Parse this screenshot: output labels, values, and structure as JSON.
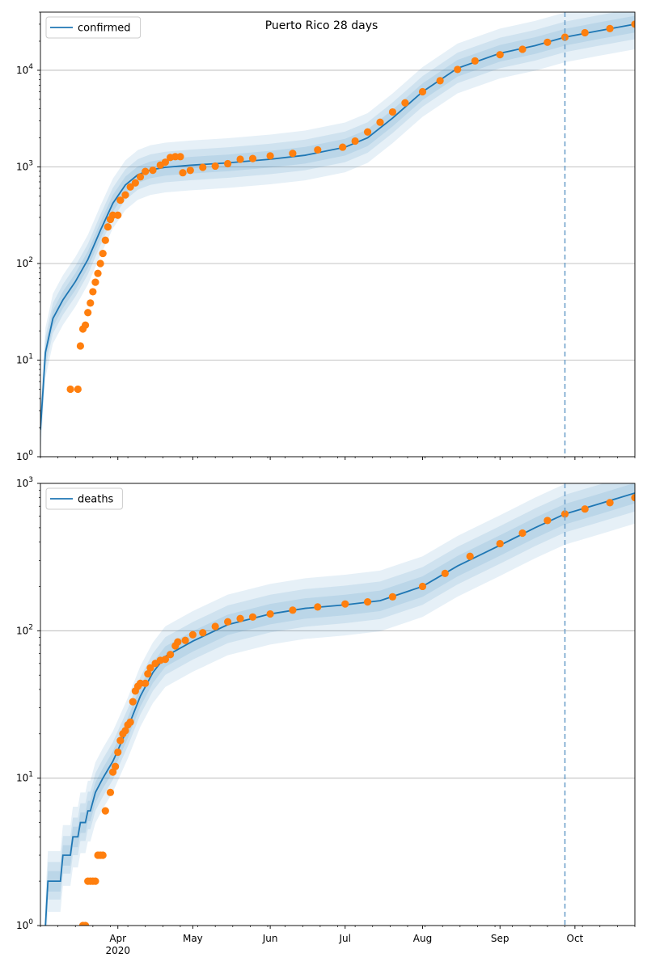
{
  "chart_data": [
    {
      "type": "line",
      "title": "Puerto Rico 28 days",
      "xlabel": "",
      "ylabel": "",
      "yscale": "log",
      "ylim": [
        1,
        40000
      ],
      "xlim": [
        "2020-03-01",
        "2020-10-25"
      ],
      "grid": "y-major",
      "legend_position": "upper-left",
      "x_tick_labels": [
        "Apr\n2020",
        "May",
        "Jun",
        "Jul",
        "Aug",
        "Sep",
        "Oct"
      ],
      "y_tick_labels": [
        "10^0",
        "10^1",
        "10^2",
        "10^3",
        "10^4"
      ],
      "forecast_start": "2020-09-27",
      "series": [
        {
          "name": "confirmed",
          "kind": "model",
          "color": "#1f77b4",
          "points": [
            [
              "2020-03-01",
              1.9
            ],
            [
              "2020-03-03",
              12
            ],
            [
              "2020-03-06",
              27
            ],
            [
              "2020-03-10",
              42
            ],
            [
              "2020-03-15",
              65
            ],
            [
              "2020-03-20",
              110
            ],
            [
              "2020-03-25",
              220
            ],
            [
              "2020-03-30",
              420
            ],
            [
              "2020-04-04",
              650
            ],
            [
              "2020-04-09",
              830
            ],
            [
              "2020-04-14",
              930
            ],
            [
              "2020-04-20",
              990
            ],
            [
              "2020-04-30",
              1040
            ],
            [
              "2020-05-15",
              1100
            ],
            [
              "2020-06-01",
              1200
            ],
            [
              "2020-06-15",
              1320
            ],
            [
              "2020-07-01",
              1600
            ],
            [
              "2020-07-10",
              2000
            ],
            [
              "2020-07-20",
              3200
            ],
            [
              "2020-08-01",
              6000
            ],
            [
              "2020-08-15",
              10500
            ],
            [
              "2020-09-01",
              15000
            ],
            [
              "2020-09-15",
              18000
            ],
            [
              "2020-09-27",
              22000
            ],
            [
              "2020-10-10",
              25500
            ],
            [
              "2020-10-25",
              30000
            ]
          ]
        },
        {
          "name": "",
          "kind": "observed",
          "color": "#ff7f0e",
          "points": [
            [
              "2020-03-13",
              5
            ],
            [
              "2020-03-16",
              5
            ],
            [
              "2020-03-17",
              14
            ],
            [
              "2020-03-18",
              21
            ],
            [
              "2020-03-19",
              23
            ],
            [
              "2020-03-20",
              31
            ],
            [
              "2020-03-21",
              39
            ],
            [
              "2020-03-22",
              51
            ],
            [
              "2020-03-23",
              64
            ],
            [
              "2020-03-24",
              79
            ],
            [
              "2020-03-25",
              100
            ],
            [
              "2020-03-26",
              127
            ],
            [
              "2020-03-27",
              174
            ],
            [
              "2020-03-28",
              239
            ],
            [
              "2020-03-29",
              286
            ],
            [
              "2020-03-30",
              316
            ],
            [
              "2020-04-01",
              316
            ],
            [
              "2020-04-02",
              452
            ],
            [
              "2020-04-04",
              513
            ],
            [
              "2020-04-06",
              620
            ],
            [
              "2020-04-08",
              683
            ],
            [
              "2020-04-10",
              788
            ],
            [
              "2020-04-12",
              897
            ],
            [
              "2020-04-15",
              923
            ],
            [
              "2020-04-18",
              1043
            ],
            [
              "2020-04-20",
              1118
            ],
            [
              "2020-04-22",
              1252
            ],
            [
              "2020-04-24",
              1276
            ],
            [
              "2020-04-26",
              1276
            ],
            [
              "2020-04-27",
              870
            ],
            [
              "2020-04-30",
              920
            ],
            [
              "2020-05-05",
              990
            ],
            [
              "2020-05-10",
              1020
            ],
            [
              "2020-05-15",
              1080
            ],
            [
              "2020-05-20",
              1200
            ],
            [
              "2020-05-25",
              1220
            ],
            [
              "2020-06-01",
              1300
            ],
            [
              "2020-06-10",
              1380
            ],
            [
              "2020-06-20",
              1500
            ],
            [
              "2020-06-30",
              1600
            ],
            [
              "2020-07-05",
              1850
            ],
            [
              "2020-07-10",
              2300
            ],
            [
              "2020-07-15",
              2900
            ],
            [
              "2020-07-20",
              3700
            ],
            [
              "2020-07-25",
              4600
            ],
            [
              "2020-08-01",
              6000
            ],
            [
              "2020-08-08",
              7800
            ],
            [
              "2020-08-15",
              10200
            ],
            [
              "2020-08-22",
              12500
            ],
            [
              "2020-09-01",
              14500
            ],
            [
              "2020-09-10",
              16500
            ],
            [
              "2020-09-20",
              19500
            ],
            [
              "2020-09-27",
              22000
            ],
            [
              "2020-10-05",
              24500
            ],
            [
              "2020-10-15",
              27000
            ],
            [
              "2020-10-25",
              30000
            ]
          ]
        }
      ],
      "bands": [
        [
          0.55,
          1.8
        ],
        [
          0.7,
          1.45
        ],
        [
          0.82,
          1.22
        ]
      ]
    },
    {
      "type": "line",
      "title": "",
      "xlabel": "",
      "ylabel": "",
      "yscale": "log",
      "ylim": [
        1,
        1000
      ],
      "xlim": [
        "2020-03-01",
        "2020-10-25"
      ],
      "grid": "y-major",
      "legend_position": "upper-left",
      "x_tick_labels": [
        "Apr\n2020",
        "May",
        "Jun",
        "Jul",
        "Aug",
        "Sep",
        "Oct"
      ],
      "y_tick_labels": [
        "10^0",
        "10^1",
        "10^2",
        "10^3"
      ],
      "forecast_start": "2020-09-27",
      "series": [
        {
          "name": "deaths",
          "kind": "model",
          "color": "#1f77b4",
          "points": [
            [
              "2020-03-03",
              1
            ],
            [
              "2020-03-04",
              2
            ],
            [
              "2020-03-09",
              2
            ],
            [
              "2020-03-10",
              3
            ],
            [
              "2020-03-13",
              3
            ],
            [
              "2020-03-14",
              4
            ],
            [
              "2020-03-16",
              4
            ],
            [
              "2020-03-17",
              5
            ],
            [
              "2020-03-19",
              5
            ],
            [
              "2020-03-20",
              6
            ],
            [
              "2020-03-21",
              6
            ],
            [
              "2020-03-23",
              8
            ],
            [
              "2020-03-26",
              10
            ],
            [
              "2020-03-30",
              13
            ],
            [
              "2020-04-05",
              22
            ],
            [
              "2020-04-10",
              36
            ],
            [
              "2020-04-15",
              52
            ],
            [
              "2020-04-20",
              67
            ],
            [
              "2020-05-01",
              85
            ],
            [
              "2020-05-15",
              110
            ],
            [
              "2020-06-01",
              130
            ],
            [
              "2020-06-15",
              142
            ],
            [
              "2020-07-01",
              150
            ],
            [
              "2020-07-15",
              160
            ],
            [
              "2020-08-01",
              200
            ],
            [
              "2020-08-15",
              275
            ],
            [
              "2020-09-01",
              380
            ],
            [
              "2020-09-15",
              500
            ],
            [
              "2020-09-27",
              620
            ],
            [
              "2020-10-10",
              720
            ],
            [
              "2020-10-25",
              860
            ]
          ]
        },
        {
          "name": "",
          "kind": "observed",
          "color": "#ff7f0e",
          "points": [
            [
              "2020-03-18",
              1
            ],
            [
              "2020-03-19",
              1
            ],
            [
              "2020-03-20",
              2
            ],
            [
              "2020-03-21",
              2
            ],
            [
              "2020-03-22",
              2
            ],
            [
              "2020-03-23",
              2
            ],
            [
              "2020-03-24",
              3
            ],
            [
              "2020-03-25",
              3
            ],
            [
              "2020-03-26",
              3
            ],
            [
              "2020-03-27",
              6
            ],
            [
              "2020-03-29",
              8
            ],
            [
              "2020-03-30",
              11
            ],
            [
              "2020-03-31",
              12
            ],
            [
              "2020-04-01",
              15
            ],
            [
              "2020-04-02",
              18
            ],
            [
              "2020-04-03",
              20
            ],
            [
              "2020-04-04",
              21
            ],
            [
              "2020-04-05",
              23
            ],
            [
              "2020-04-06",
              24
            ],
            [
              "2020-04-07",
              33
            ],
            [
              "2020-04-08",
              39
            ],
            [
              "2020-04-09",
              42
            ],
            [
              "2020-04-10",
              44
            ],
            [
              "2020-04-12",
              44
            ],
            [
              "2020-04-13",
              51
            ],
            [
              "2020-04-14",
              56
            ],
            [
              "2020-04-16",
              60
            ],
            [
              "2020-04-18",
              63
            ],
            [
              "2020-04-20",
              64
            ],
            [
              "2020-04-22",
              69
            ],
            [
              "2020-04-24",
              79
            ],
            [
              "2020-04-25",
              84
            ],
            [
              "2020-04-28",
              86
            ],
            [
              "2020-05-01",
              94
            ],
            [
              "2020-05-05",
              97
            ],
            [
              "2020-05-10",
              107
            ],
            [
              "2020-05-15",
              115
            ],
            [
              "2020-05-20",
              121
            ],
            [
              "2020-05-25",
              124
            ],
            [
              "2020-06-01",
              130
            ],
            [
              "2020-06-10",
              138
            ],
            [
              "2020-06-20",
              145
            ],
            [
              "2020-07-01",
              152
            ],
            [
              "2020-07-10",
              157
            ],
            [
              "2020-07-20",
              170
            ],
            [
              "2020-08-01",
              200
            ],
            [
              "2020-08-10",
              245
            ],
            [
              "2020-08-20",
              320
            ],
            [
              "2020-09-01",
              390
            ],
            [
              "2020-09-10",
              460
            ],
            [
              "2020-09-20",
              560
            ],
            [
              "2020-09-27",
              620
            ],
            [
              "2020-10-05",
              670
            ],
            [
              "2020-10-15",
              740
            ],
            [
              "2020-10-25",
              800
            ]
          ]
        }
      ],
      "bands": [
        [
          0.62,
          1.6
        ],
        [
          0.75,
          1.35
        ],
        [
          0.85,
          1.17
        ]
      ]
    }
  ]
}
